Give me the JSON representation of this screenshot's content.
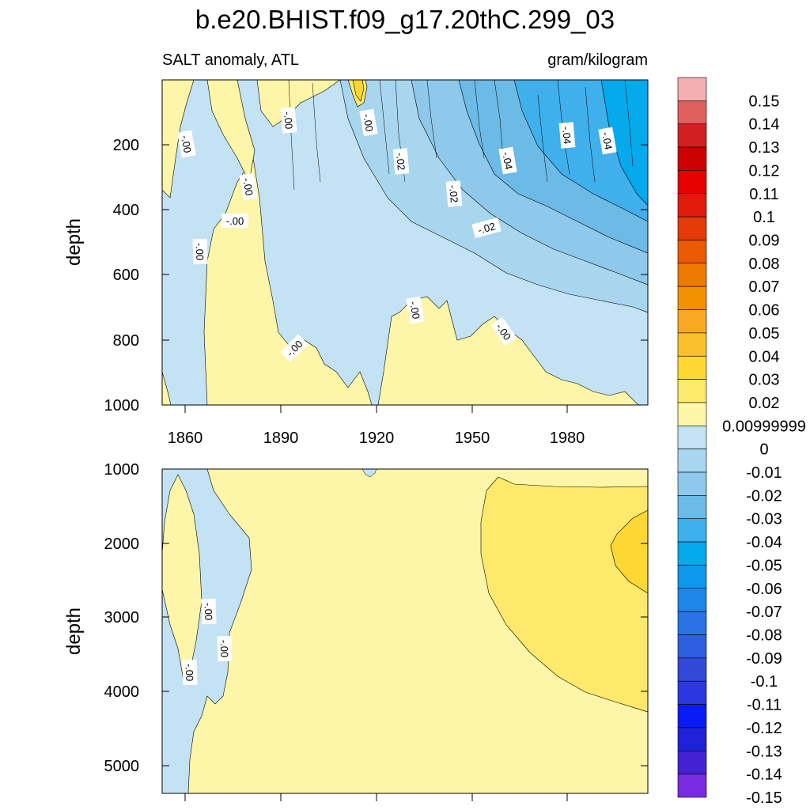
{
  "chart_data": {
    "type": "heatmap",
    "title": "b.e20.BHIST.f09_g17.20thC.299_03",
    "variable": "SALT anomaly, ATL",
    "units": "gram/kilogram",
    "colors": {
      "pos": [
        "#fdf6a8",
        "#fde96b",
        "#fdd835",
        "#fbc02d",
        "#f9a825",
        "#f39200",
        "#ef7a00",
        "#eb5a00",
        "#e53a0a",
        "#e11a0a",
        "#e60000",
        "#cf0000",
        "#d22020",
        "#e06060",
        "#f4b0b0"
      ],
      "neg": [
        "#c3e3f4",
        "#a8d6ef",
        "#8ec8ea",
        "#6cbae6",
        "#3fb0ec",
        "#06a9ec",
        "#0f97ec",
        "#1f86e9",
        "#2a72e6",
        "#305ee0",
        "#3448d8",
        "#2d37df",
        "#0a1cf5",
        "#1f23d8",
        "#4422d4",
        "#7a2ae0"
      ],
      "grid_line": "#000000"
    },
    "colorbar": {
      "labels": [
        "0.15",
        "0.14",
        "0.13",
        "0.12",
        "0.11",
        "0.1",
        "0.09",
        "0.08",
        "0.07",
        "0.06",
        "0.05",
        "0.04",
        "0.03",
        "0.02",
        "0.00999999",
        "0",
        "-0.01",
        "-0.02",
        "-0.03",
        "-0.04",
        "-0.05",
        "-0.06",
        "-0.07",
        "-0.08",
        "-0.09",
        "-0.1",
        "-0.11",
        "-0.12",
        "-0.13",
        "-0.14",
        "-0.15"
      ]
    },
    "panels": [
      {
        "name": "upper",
        "ylabel": "depth",
        "ylim": [
          1000,
          0
        ],
        "yticks": [
          "200",
          "400",
          "600",
          "800",
          "1000"
        ],
        "xlim": [
          1850,
          2005
        ],
        "xticks": [
          "1860",
          "1890",
          "1920",
          "1950",
          "1980"
        ],
        "contour_labels": [
          "-.00",
          "-.00",
          "-.00",
          "-.00",
          "-.00",
          "-.00",
          "-.00",
          "-.00",
          "-.00",
          "-.02",
          "-.02",
          "-.02",
          "-.04",
          "-.04",
          "-.04"
        ]
      },
      {
        "name": "lower",
        "ylabel": "depth",
        "ylim": [
          1000,
          5400
        ],
        "yticks": [
          "1000",
          "2000",
          "3000",
          "4000",
          "5000"
        ],
        "xlim": [
          1850,
          2005
        ],
        "contour_labels": [
          "-.00",
          "-.00",
          "-.00"
        ]
      }
    ]
  }
}
